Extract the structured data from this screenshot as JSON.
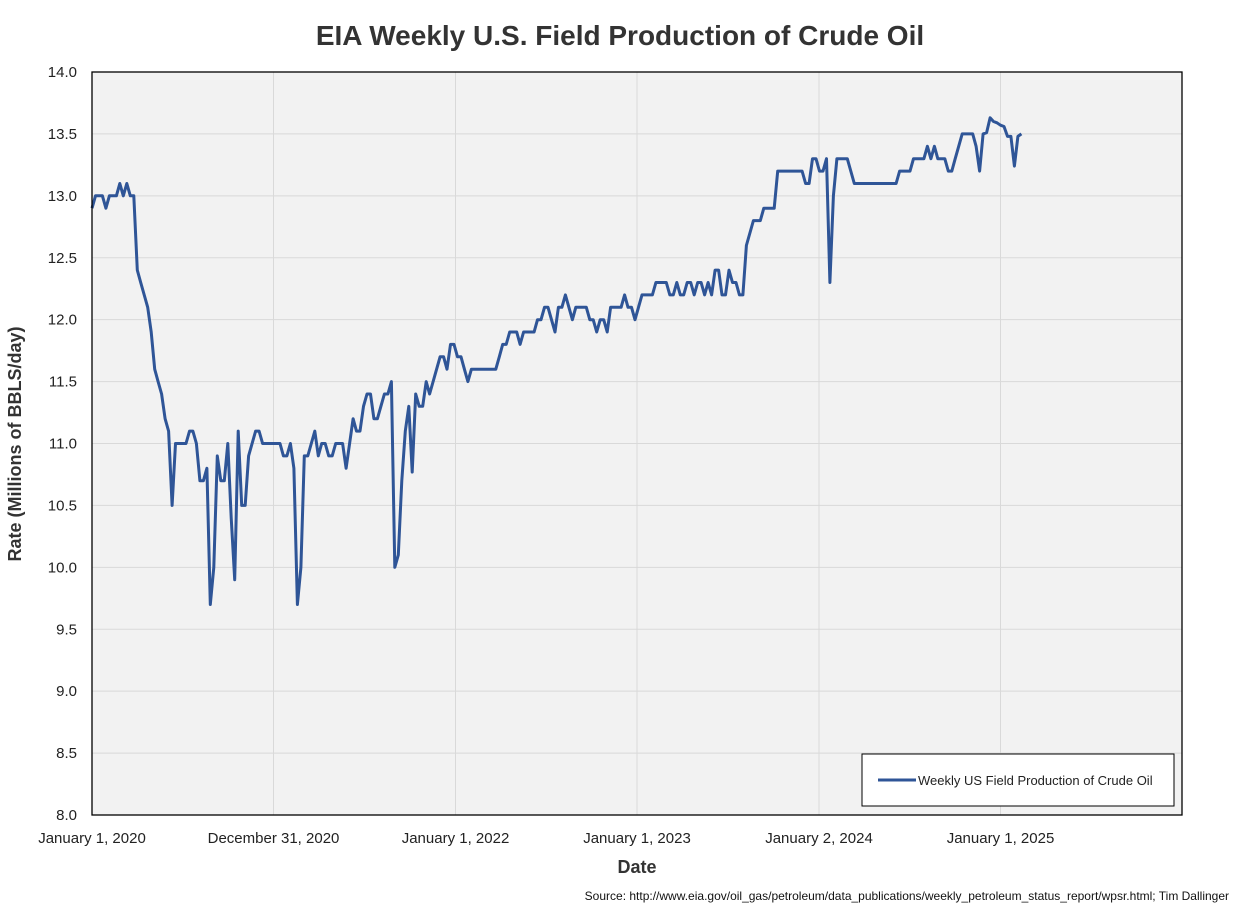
{
  "chart_data": {
    "type": "line",
    "title": "EIA Weekly U.S. Field Production of Crude Oil",
    "xlabel": "Date",
    "ylabel": "Rate (Millions of BBLS/day)",
    "ylim": [
      8.0,
      14.0
    ],
    "y_ticks": [
      "8.0",
      "8.5",
      "9.0",
      "9.5",
      "10.0",
      "10.5",
      "11.0",
      "11.5",
      "12.0",
      "12.5",
      "13.0",
      "13.5",
      "14.0"
    ],
    "x_range": [
      "2020-01-01",
      "2026-01-01"
    ],
    "x_ticks": [
      {
        "date": "2020-01-01",
        "label": "January 1, 2020"
      },
      {
        "date": "2020-12-31",
        "label": "December 31, 2020"
      },
      {
        "date": "2022-01-01",
        "label": "January 1, 2022"
      },
      {
        "date": "2023-01-01",
        "label": "January 1, 2023"
      },
      {
        "date": "2024-01-02",
        "label": "January 2, 2024"
      },
      {
        "date": "2025-01-01",
        "label": "January 1, 2025"
      }
    ],
    "grid": true,
    "legend_position": "bottom-right",
    "series": [
      {
        "name": "Weekly US Field Production of Crude Oil",
        "color": "#2f5597",
        "points": [
          [
            "2020-01-01",
            12.9
          ],
          [
            "2020-01-08",
            13.0
          ],
          [
            "2020-01-15",
            13.0
          ],
          [
            "2020-01-22",
            13.0
          ],
          [
            "2020-01-29",
            12.9
          ],
          [
            "2020-02-05",
            13.0
          ],
          [
            "2020-02-12",
            13.0
          ],
          [
            "2020-02-19",
            13.0
          ],
          [
            "2020-02-26",
            13.1
          ],
          [
            "2020-03-04",
            13.0
          ],
          [
            "2020-03-11",
            13.1
          ],
          [
            "2020-03-18",
            13.0
          ],
          [
            "2020-03-25",
            13.0
          ],
          [
            "2020-04-01",
            12.4
          ],
          [
            "2020-04-08",
            12.3
          ],
          [
            "2020-04-15",
            12.2
          ],
          [
            "2020-04-22",
            12.1
          ],
          [
            "2020-04-29",
            11.9
          ],
          [
            "2020-05-06",
            11.6
          ],
          [
            "2020-05-13",
            11.5
          ],
          [
            "2020-05-20",
            11.4
          ],
          [
            "2020-05-27",
            11.2
          ],
          [
            "2020-06-03",
            11.1
          ],
          [
            "2020-06-10",
            10.5
          ],
          [
            "2020-06-17",
            11.0
          ],
          [
            "2020-06-24",
            11.0
          ],
          [
            "2020-07-01",
            11.0
          ],
          [
            "2020-07-08",
            11.0
          ],
          [
            "2020-07-15",
            11.1
          ],
          [
            "2020-07-22",
            11.1
          ],
          [
            "2020-07-29",
            11.0
          ],
          [
            "2020-08-05",
            10.7
          ],
          [
            "2020-08-12",
            10.7
          ],
          [
            "2020-08-19",
            10.8
          ],
          [
            "2020-08-26",
            9.7
          ],
          [
            "2020-09-02",
            10.0
          ],
          [
            "2020-09-09",
            10.9
          ],
          [
            "2020-09-16",
            10.7
          ],
          [
            "2020-09-23",
            10.7
          ],
          [
            "2020-09-30",
            11.0
          ],
          [
            "2020-10-07",
            10.4
          ],
          [
            "2020-10-14",
            9.9
          ],
          [
            "2020-10-21",
            11.1
          ],
          [
            "2020-10-28",
            10.5
          ],
          [
            "2020-11-04",
            10.5
          ],
          [
            "2020-11-11",
            10.9
          ],
          [
            "2020-11-18",
            11.0
          ],
          [
            "2020-11-25",
            11.1
          ],
          [
            "2020-12-02",
            11.1
          ],
          [
            "2020-12-09",
            11.0
          ],
          [
            "2020-12-16",
            11.0
          ],
          [
            "2020-12-23",
            11.0
          ],
          [
            "2020-12-30",
            11.0
          ],
          [
            "2021-01-06",
            11.0
          ],
          [
            "2021-01-13",
            11.0
          ],
          [
            "2021-01-20",
            10.9
          ],
          [
            "2021-01-27",
            10.9
          ],
          [
            "2021-02-03",
            11.0
          ],
          [
            "2021-02-10",
            10.8
          ],
          [
            "2021-02-17",
            9.7
          ],
          [
            "2021-02-24",
            10.0
          ],
          [
            "2021-03-03",
            10.9
          ],
          [
            "2021-03-10",
            10.9
          ],
          [
            "2021-03-17",
            11.0
          ],
          [
            "2021-03-24",
            11.1
          ],
          [
            "2021-03-31",
            10.9
          ],
          [
            "2021-04-07",
            11.0
          ],
          [
            "2021-04-14",
            11.0
          ],
          [
            "2021-04-21",
            10.9
          ],
          [
            "2021-04-28",
            10.9
          ],
          [
            "2021-05-05",
            11.0
          ],
          [
            "2021-05-12",
            11.0
          ],
          [
            "2021-05-19",
            11.0
          ],
          [
            "2021-05-26",
            10.8
          ],
          [
            "2021-06-02",
            11.0
          ],
          [
            "2021-06-09",
            11.2
          ],
          [
            "2021-06-16",
            11.1
          ],
          [
            "2021-06-23",
            11.1
          ],
          [
            "2021-06-30",
            11.3
          ],
          [
            "2021-07-07",
            11.4
          ],
          [
            "2021-07-14",
            11.4
          ],
          [
            "2021-07-21",
            11.2
          ],
          [
            "2021-07-28",
            11.2
          ],
          [
            "2021-08-04",
            11.3
          ],
          [
            "2021-08-11",
            11.4
          ],
          [
            "2021-08-18",
            11.4
          ],
          [
            "2021-08-25",
            11.5
          ],
          [
            "2021-09-01",
            10.0
          ],
          [
            "2021-09-08",
            10.1
          ],
          [
            "2021-09-15",
            10.7
          ],
          [
            "2021-09-22",
            11.1
          ],
          [
            "2021-09-29",
            11.3
          ],
          [
            "2021-10-06",
            10.77
          ],
          [
            "2021-10-13",
            11.4
          ],
          [
            "2021-10-20",
            11.3
          ],
          [
            "2021-10-27",
            11.3
          ],
          [
            "2021-11-03",
            11.5
          ],
          [
            "2021-11-10",
            11.4
          ],
          [
            "2021-11-17",
            11.5
          ],
          [
            "2021-11-24",
            11.6
          ],
          [
            "2021-12-01",
            11.7
          ],
          [
            "2021-12-08",
            11.7
          ],
          [
            "2021-12-15",
            11.6
          ],
          [
            "2021-12-22",
            11.8
          ],
          [
            "2021-12-29",
            11.8
          ],
          [
            "2022-01-05",
            11.7
          ],
          [
            "2022-01-12",
            11.7
          ],
          [
            "2022-01-19",
            11.6
          ],
          [
            "2022-01-26",
            11.5
          ],
          [
            "2022-02-02",
            11.6
          ],
          [
            "2022-02-09",
            11.6
          ],
          [
            "2022-02-16",
            11.6
          ],
          [
            "2022-02-23",
            11.6
          ],
          [
            "2022-03-02",
            11.6
          ],
          [
            "2022-03-09",
            11.6
          ],
          [
            "2022-03-16",
            11.6
          ],
          [
            "2022-03-23",
            11.6
          ],
          [
            "2022-03-30",
            11.7
          ],
          [
            "2022-04-06",
            11.8
          ],
          [
            "2022-04-13",
            11.8
          ],
          [
            "2022-04-20",
            11.9
          ],
          [
            "2022-04-27",
            11.9
          ],
          [
            "2022-05-04",
            11.9
          ],
          [
            "2022-05-11",
            11.8
          ],
          [
            "2022-05-18",
            11.9
          ],
          [
            "2022-05-25",
            11.9
          ],
          [
            "2022-06-01",
            11.9
          ],
          [
            "2022-06-08",
            11.9
          ],
          [
            "2022-06-15",
            12.0
          ],
          [
            "2022-06-22",
            12.0
          ],
          [
            "2022-06-29",
            12.1
          ],
          [
            "2022-07-06",
            12.1
          ],
          [
            "2022-07-13",
            12.0
          ],
          [
            "2022-07-20",
            11.9
          ],
          [
            "2022-07-27",
            12.1
          ],
          [
            "2022-08-03",
            12.1
          ],
          [
            "2022-08-10",
            12.2
          ],
          [
            "2022-08-17",
            12.1
          ],
          [
            "2022-08-24",
            12.0
          ],
          [
            "2022-08-31",
            12.1
          ],
          [
            "2022-09-07",
            12.1
          ],
          [
            "2022-09-14",
            12.1
          ],
          [
            "2022-09-21",
            12.1
          ],
          [
            "2022-09-28",
            12.0
          ],
          [
            "2022-10-05",
            12.0
          ],
          [
            "2022-10-12",
            11.9
          ],
          [
            "2022-10-19",
            12.0
          ],
          [
            "2022-10-26",
            12.0
          ],
          [
            "2022-11-02",
            11.9
          ],
          [
            "2022-11-09",
            12.1
          ],
          [
            "2022-11-16",
            12.1
          ],
          [
            "2022-11-23",
            12.1
          ],
          [
            "2022-11-30",
            12.1
          ],
          [
            "2022-12-07",
            12.2
          ],
          [
            "2022-12-14",
            12.1
          ],
          [
            "2022-12-21",
            12.1
          ],
          [
            "2022-12-28",
            12.0
          ],
          [
            "2023-01-04",
            12.1
          ],
          [
            "2023-01-11",
            12.2
          ],
          [
            "2023-01-18",
            12.2
          ],
          [
            "2023-01-25",
            12.2
          ],
          [
            "2023-02-01",
            12.2
          ],
          [
            "2023-02-08",
            12.3
          ],
          [
            "2023-02-15",
            12.3
          ],
          [
            "2023-02-22",
            12.3
          ],
          [
            "2023-03-01",
            12.3
          ],
          [
            "2023-03-08",
            12.2
          ],
          [
            "2023-03-15",
            12.2
          ],
          [
            "2023-03-22",
            12.3
          ],
          [
            "2023-03-29",
            12.2
          ],
          [
            "2023-04-05",
            12.2
          ],
          [
            "2023-04-12",
            12.3
          ],
          [
            "2023-04-19",
            12.3
          ],
          [
            "2023-04-26",
            12.2
          ],
          [
            "2023-05-03",
            12.3
          ],
          [
            "2023-05-10",
            12.3
          ],
          [
            "2023-05-17",
            12.2
          ],
          [
            "2023-05-24",
            12.3
          ],
          [
            "2023-05-31",
            12.2
          ],
          [
            "2023-06-07",
            12.4
          ],
          [
            "2023-06-14",
            12.4
          ],
          [
            "2023-06-21",
            12.2
          ],
          [
            "2023-06-28",
            12.2
          ],
          [
            "2023-07-05",
            12.4
          ],
          [
            "2023-07-12",
            12.3
          ],
          [
            "2023-07-19",
            12.3
          ],
          [
            "2023-07-26",
            12.2
          ],
          [
            "2023-08-02",
            12.2
          ],
          [
            "2023-08-09",
            12.6
          ],
          [
            "2023-08-16",
            12.7
          ],
          [
            "2023-08-23",
            12.8
          ],
          [
            "2023-08-30",
            12.8
          ],
          [
            "2023-09-06",
            12.8
          ],
          [
            "2023-09-13",
            12.9
          ],
          [
            "2023-09-20",
            12.9
          ],
          [
            "2023-09-27",
            12.9
          ],
          [
            "2023-10-04",
            12.9
          ],
          [
            "2023-10-11",
            13.2
          ],
          [
            "2023-10-18",
            13.2
          ],
          [
            "2023-10-25",
            13.2
          ],
          [
            "2023-11-01",
            13.2
          ],
          [
            "2023-11-08",
            13.2
          ],
          [
            "2023-11-15",
            13.2
          ],
          [
            "2023-11-22",
            13.2
          ],
          [
            "2023-11-29",
            13.2
          ],
          [
            "2023-12-06",
            13.1
          ],
          [
            "2023-12-13",
            13.1
          ],
          [
            "2023-12-20",
            13.3
          ],
          [
            "2023-12-27",
            13.3
          ],
          [
            "2024-01-03",
            13.2
          ],
          [
            "2024-01-10",
            13.2
          ],
          [
            "2024-01-17",
            13.3
          ],
          [
            "2024-01-24",
            12.3
          ],
          [
            "2024-01-31",
            13.0
          ],
          [
            "2024-02-07",
            13.3
          ],
          [
            "2024-02-14",
            13.3
          ],
          [
            "2024-02-21",
            13.3
          ],
          [
            "2024-02-28",
            13.3
          ],
          [
            "2024-03-06",
            13.2
          ],
          [
            "2024-03-13",
            13.1
          ],
          [
            "2024-03-20",
            13.1
          ],
          [
            "2024-03-27",
            13.1
          ],
          [
            "2024-04-03",
            13.1
          ],
          [
            "2024-04-10",
            13.1
          ],
          [
            "2024-04-17",
            13.1
          ],
          [
            "2024-04-24",
            13.1
          ],
          [
            "2024-05-01",
            13.1
          ],
          [
            "2024-05-08",
            13.1
          ],
          [
            "2024-05-15",
            13.1
          ],
          [
            "2024-05-22",
            13.1
          ],
          [
            "2024-05-29",
            13.1
          ],
          [
            "2024-06-05",
            13.1
          ],
          [
            "2024-06-12",
            13.2
          ],
          [
            "2024-06-19",
            13.2
          ],
          [
            "2024-06-26",
            13.2
          ],
          [
            "2024-07-03",
            13.2
          ],
          [
            "2024-07-10",
            13.3
          ],
          [
            "2024-07-17",
            13.3
          ],
          [
            "2024-07-24",
            13.3
          ],
          [
            "2024-07-31",
            13.3
          ],
          [
            "2024-08-07",
            13.4
          ],
          [
            "2024-08-14",
            13.3
          ],
          [
            "2024-08-21",
            13.4
          ],
          [
            "2024-08-28",
            13.3
          ],
          [
            "2024-09-04",
            13.3
          ],
          [
            "2024-09-11",
            13.3
          ],
          [
            "2024-09-18",
            13.2
          ],
          [
            "2024-09-25",
            13.2
          ],
          [
            "2024-10-02",
            13.3
          ],
          [
            "2024-10-09",
            13.4
          ],
          [
            "2024-10-16",
            13.5
          ],
          [
            "2024-10-23",
            13.5
          ],
          [
            "2024-10-30",
            13.5
          ],
          [
            "2024-11-06",
            13.5
          ],
          [
            "2024-11-13",
            13.4
          ],
          [
            "2024-11-20",
            13.2
          ],
          [
            "2024-11-27",
            13.5
          ],
          [
            "2024-12-04",
            13.51
          ],
          [
            "2024-12-11",
            13.63
          ],
          [
            "2024-12-18",
            13.6
          ],
          [
            "2024-12-25",
            13.59
          ],
          [
            "2025-01-01",
            13.57
          ],
          [
            "2025-01-08",
            13.56
          ],
          [
            "2025-01-15",
            13.48
          ],
          [
            "2025-01-22",
            13.48
          ],
          [
            "2025-01-29",
            13.24
          ],
          [
            "2025-02-05",
            13.48
          ],
          [
            "2025-02-12",
            13.5
          ]
        ]
      }
    ]
  },
  "source_text": "Source: http://www.eia.gov/oil_gas/petroleum/data_publications/weekly_petroleum_status_report/wpsr.html; Tim Dallinger"
}
